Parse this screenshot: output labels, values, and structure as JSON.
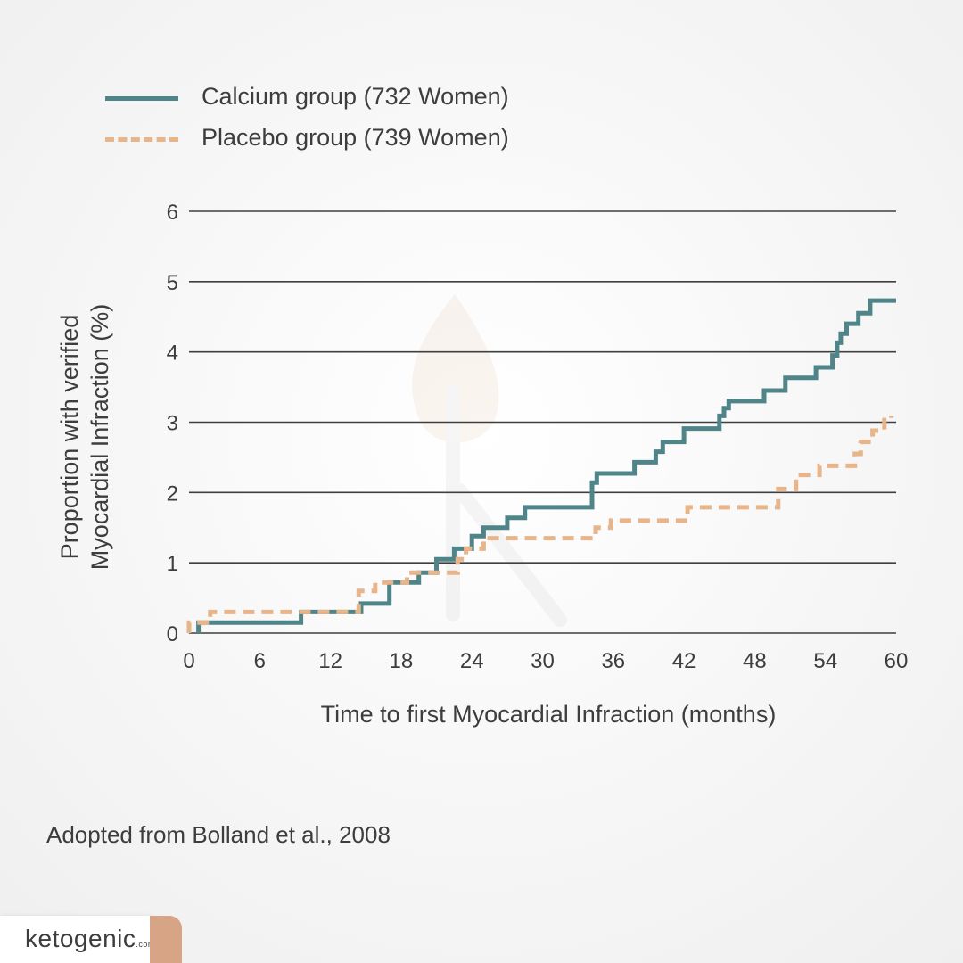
{
  "brand": {
    "logo_text": "ketogenic.com"
  },
  "source_text": "Adopted from Bolland et al., 2008",
  "chart_data": {
    "type": "line",
    "title": "",
    "xlabel": "Time to first Myocardial Infraction (months)",
    "ylabel": "Proportion with verified Myocardial Infraction (%)",
    "ylabel_lines": [
      "Proportion with verified",
      "Myocardial Infraction (%)"
    ],
    "xlim": [
      0,
      60
    ],
    "ylim": [
      0,
      6
    ],
    "x_ticks": [
      0,
      6,
      12,
      18,
      24,
      30,
      36,
      42,
      48,
      54,
      60
    ],
    "y_ticks": [
      0,
      1,
      2,
      3,
      4,
      5,
      6
    ],
    "grid": "horizontal",
    "legend_position": "top-left",
    "step": true,
    "series": [
      {
        "name": "Calcium group (732 Women)",
        "color": "#4f8488",
        "style": "solid",
        "points": [
          [
            0.8,
            0
          ],
          [
            0.8,
            0.15
          ],
          [
            9.5,
            0.15
          ],
          [
            9.5,
            0.3
          ],
          [
            14.6,
            0.3
          ],
          [
            14.6,
            0.42
          ],
          [
            17,
            0.42
          ],
          [
            17,
            0.72
          ],
          [
            19.5,
            0.72
          ],
          [
            19.5,
            0.86
          ],
          [
            21,
            0.86
          ],
          [
            21,
            1.05
          ],
          [
            22.5,
            1.05
          ],
          [
            22.5,
            1.2
          ],
          [
            24,
            1.2
          ],
          [
            24,
            1.38
          ],
          [
            25,
            1.38
          ],
          [
            25,
            1.5
          ],
          [
            27,
            1.5
          ],
          [
            27,
            1.64
          ],
          [
            28.5,
            1.64
          ],
          [
            28.5,
            1.79
          ],
          [
            34.2,
            1.79
          ],
          [
            34.2,
            2.14
          ],
          [
            34.6,
            2.14
          ],
          [
            34.6,
            2.27
          ],
          [
            37.8,
            2.27
          ],
          [
            37.8,
            2.43
          ],
          [
            39.6,
            2.43
          ],
          [
            39.6,
            2.58
          ],
          [
            40.2,
            2.58
          ],
          [
            40.2,
            2.72
          ],
          [
            42,
            2.72
          ],
          [
            42,
            2.91
          ],
          [
            45,
            2.91
          ],
          [
            45,
            3.09
          ],
          [
            45.4,
            3.09
          ],
          [
            45.4,
            3.2
          ],
          [
            45.8,
            3.2
          ],
          [
            45.8,
            3.3
          ],
          [
            48.8,
            3.3
          ],
          [
            48.8,
            3.45
          ],
          [
            50.6,
            3.45
          ],
          [
            50.6,
            3.63
          ],
          [
            53.2,
            3.63
          ],
          [
            53.2,
            3.78
          ],
          [
            54.6,
            3.78
          ],
          [
            54.6,
            3.95
          ],
          [
            55,
            3.95
          ],
          [
            55,
            4.13
          ],
          [
            55.3,
            4.13
          ],
          [
            55.3,
            4.26
          ],
          [
            55.8,
            4.26
          ],
          [
            55.8,
            4.4
          ],
          [
            56.8,
            4.4
          ],
          [
            56.8,
            4.55
          ],
          [
            57.8,
            4.55
          ],
          [
            57.8,
            4.73
          ],
          [
            60,
            4.73
          ]
        ]
      },
      {
        "name": "Placebo group (739 Women)",
        "color": "#e8b48a",
        "style": "dashed",
        "points": [
          [
            0,
            0
          ],
          [
            0,
            0.15
          ],
          [
            1.8,
            0.15
          ],
          [
            1.8,
            0.3
          ],
          [
            14.4,
            0.3
          ],
          [
            14.4,
            0.6
          ],
          [
            15.8,
            0.6
          ],
          [
            15.8,
            0.72
          ],
          [
            18.5,
            0.72
          ],
          [
            18.5,
            0.86
          ],
          [
            22.8,
            0.86
          ],
          [
            22.8,
            1.05
          ],
          [
            23.5,
            1.05
          ],
          [
            23.5,
            1.2
          ],
          [
            25,
            1.2
          ],
          [
            25,
            1.35
          ],
          [
            34.5,
            1.35
          ],
          [
            34.5,
            1.5
          ],
          [
            35.8,
            1.5
          ],
          [
            35.8,
            1.6
          ],
          [
            42.3,
            1.6
          ],
          [
            42.3,
            1.79
          ],
          [
            50,
            1.79
          ],
          [
            50,
            2.05
          ],
          [
            51.5,
            2.05
          ],
          [
            51.5,
            2.25
          ],
          [
            53.5,
            2.25
          ],
          [
            53.5,
            2.38
          ],
          [
            56.5,
            2.38
          ],
          [
            56.5,
            2.55
          ],
          [
            57,
            2.55
          ],
          [
            57,
            2.72
          ],
          [
            58,
            2.72
          ],
          [
            58,
            2.88
          ],
          [
            59,
            2.88
          ],
          [
            59,
            3.03
          ],
          [
            59.6,
            3.03
          ],
          [
            59.6,
            3.09
          ]
        ]
      }
    ]
  }
}
